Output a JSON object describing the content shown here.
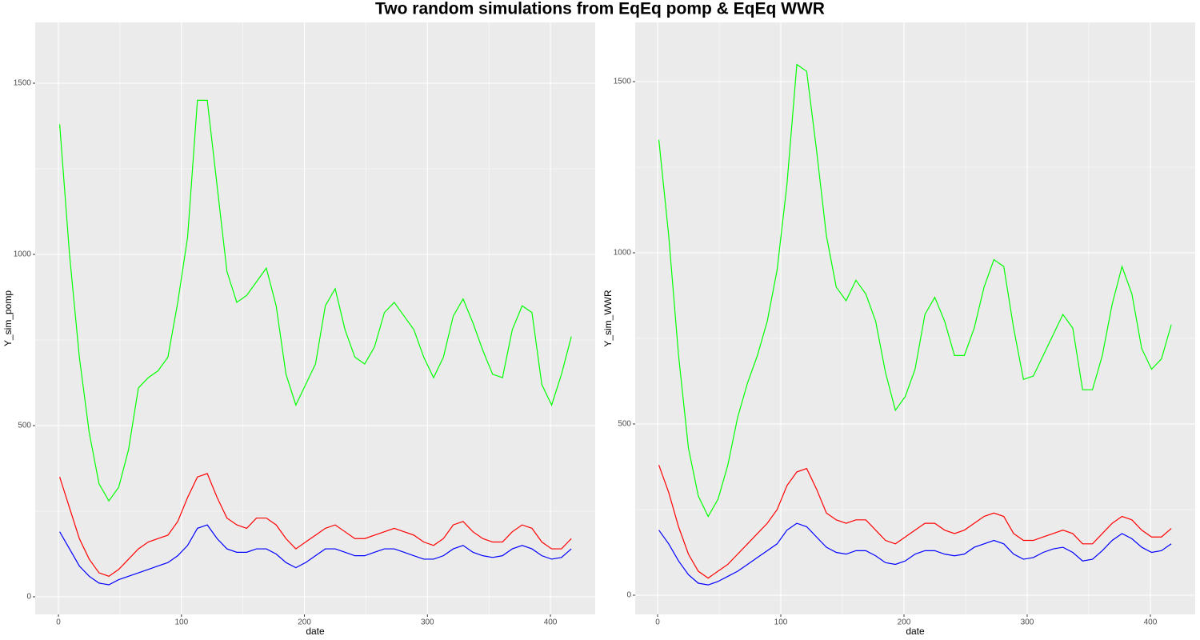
{
  "title": "Two random simulations from EqEq pomp & EqEq WWR",
  "chart_data": [
    {
      "type": "line",
      "x_label": "date",
      "y_label": "Y_sim_pomp",
      "grid": true,
      "xlim": [
        -18.9,
        436.4
      ],
      "ylim": [
        -51.4,
        1677.6
      ],
      "xticks": [
        0,
        100,
        200,
        300,
        400
      ],
      "yticks": [
        0,
        500,
        1000,
        1500
      ],
      "x": [
        1,
        9,
        17,
        25,
        33,
        41,
        49,
        57,
        65,
        73,
        81,
        89,
        97,
        105,
        113,
        121,
        129,
        137,
        145,
        153,
        161,
        169,
        177,
        185,
        193,
        201,
        209,
        217,
        225,
        233,
        241,
        249,
        257,
        265,
        273,
        281,
        289,
        297,
        305,
        313,
        321,
        329,
        337,
        345,
        353,
        361,
        369,
        377,
        385,
        393,
        401,
        409,
        417
      ],
      "series": [
        {
          "color": "#00ff00",
          "values": [
            1380,
            1000,
            700,
            480,
            330,
            280,
            320,
            430,
            610,
            640,
            660,
            700,
            860,
            1050,
            1450,
            1450,
            1200,
            950,
            860,
            880,
            920,
            960,
            850,
            650,
            560,
            620,
            680,
            850,
            900,
            780,
            700,
            680,
            730,
            830,
            860,
            820,
            780,
            700,
            640,
            700,
            820,
            870,
            800,
            720,
            650,
            640,
            780,
            850,
            830,
            620,
            560,
            650,
            760
          ]
        },
        {
          "color": "#ff0000",
          "values": [
            350,
            260,
            170,
            110,
            70,
            60,
            80,
            110,
            140,
            160,
            170,
            180,
            220,
            290,
            350,
            360,
            290,
            230,
            210,
            200,
            230,
            230,
            210,
            170,
            140,
            160,
            180,
            200,
            210,
            190,
            170,
            170,
            180,
            190,
            200,
            190,
            180,
            160,
            150,
            170,
            210,
            220,
            190,
            170,
            160,
            160,
            190,
            210,
            200,
            160,
            140,
            140,
            170
          ]
        },
        {
          "color": "#0000ff",
          "values": [
            190,
            140,
            90,
            60,
            40,
            35,
            50,
            60,
            70,
            80,
            90,
            100,
            120,
            150,
            200,
            210,
            170,
            140,
            130,
            130,
            140,
            140,
            125,
            100,
            85,
            100,
            120,
            140,
            140,
            130,
            120,
            120,
            130,
            140,
            140,
            130,
            120,
            110,
            110,
            120,
            140,
            150,
            130,
            120,
            115,
            120,
            140,
            150,
            140,
            120,
            110,
            115,
            140
          ]
        }
      ]
    },
    {
      "type": "line",
      "x_label": "date",
      "y_label": "Y_sim_WWR",
      "grid": true,
      "xlim": [
        -18.2,
        436.4
      ],
      "ylim": [
        -56.1,
        1672.9
      ],
      "xticks": [
        0,
        100,
        200,
        300,
        400
      ],
      "yticks": [
        0,
        500,
        1000,
        1500
      ],
      "x": [
        1,
        9,
        17,
        25,
        33,
        41,
        49,
        57,
        65,
        73,
        81,
        89,
        97,
        105,
        113,
        121,
        129,
        137,
        145,
        153,
        161,
        169,
        177,
        185,
        193,
        201,
        209,
        217,
        225,
        233,
        241,
        249,
        257,
        265,
        273,
        281,
        289,
        297,
        305,
        313,
        321,
        329,
        337,
        345,
        353,
        361,
        369,
        377,
        385,
        393,
        401,
        409,
        417
      ],
      "series": [
        {
          "color": "#00ff00",
          "values": [
            1330,
            1050,
            700,
            430,
            290,
            230,
            280,
            380,
            520,
            620,
            700,
            800,
            950,
            1200,
            1550,
            1530,
            1300,
            1050,
            900,
            860,
            920,
            880,
            800,
            650,
            540,
            580,
            660,
            820,
            870,
            800,
            700,
            700,
            780,
            900,
            980,
            960,
            780,
            630,
            640,
            700,
            760,
            820,
            780,
            600,
            600,
            700,
            850,
            960,
            880,
            720,
            660,
            690,
            790
          ]
        },
        {
          "color": "#ff0000",
          "values": [
            380,
            300,
            200,
            120,
            70,
            50,
            70,
            90,
            120,
            150,
            180,
            210,
            250,
            320,
            360,
            370,
            310,
            240,
            220,
            210,
            220,
            220,
            190,
            160,
            150,
            170,
            190,
            210,
            210,
            190,
            180,
            190,
            210,
            230,
            240,
            230,
            180,
            160,
            160,
            170,
            180,
            190,
            180,
            150,
            150,
            180,
            210,
            230,
            220,
            190,
            170,
            170,
            195
          ]
        },
        {
          "color": "#0000ff",
          "values": [
            190,
            150,
            100,
            60,
            35,
            30,
            40,
            55,
            70,
            90,
            110,
            130,
            150,
            190,
            210,
            200,
            170,
            140,
            125,
            120,
            130,
            130,
            115,
            95,
            90,
            100,
            120,
            130,
            130,
            120,
            115,
            120,
            140,
            150,
            160,
            150,
            120,
            105,
            110,
            125,
            135,
            140,
            125,
            100,
            105,
            130,
            160,
            180,
            165,
            140,
            125,
            130,
            150
          ]
        }
      ]
    }
  ]
}
